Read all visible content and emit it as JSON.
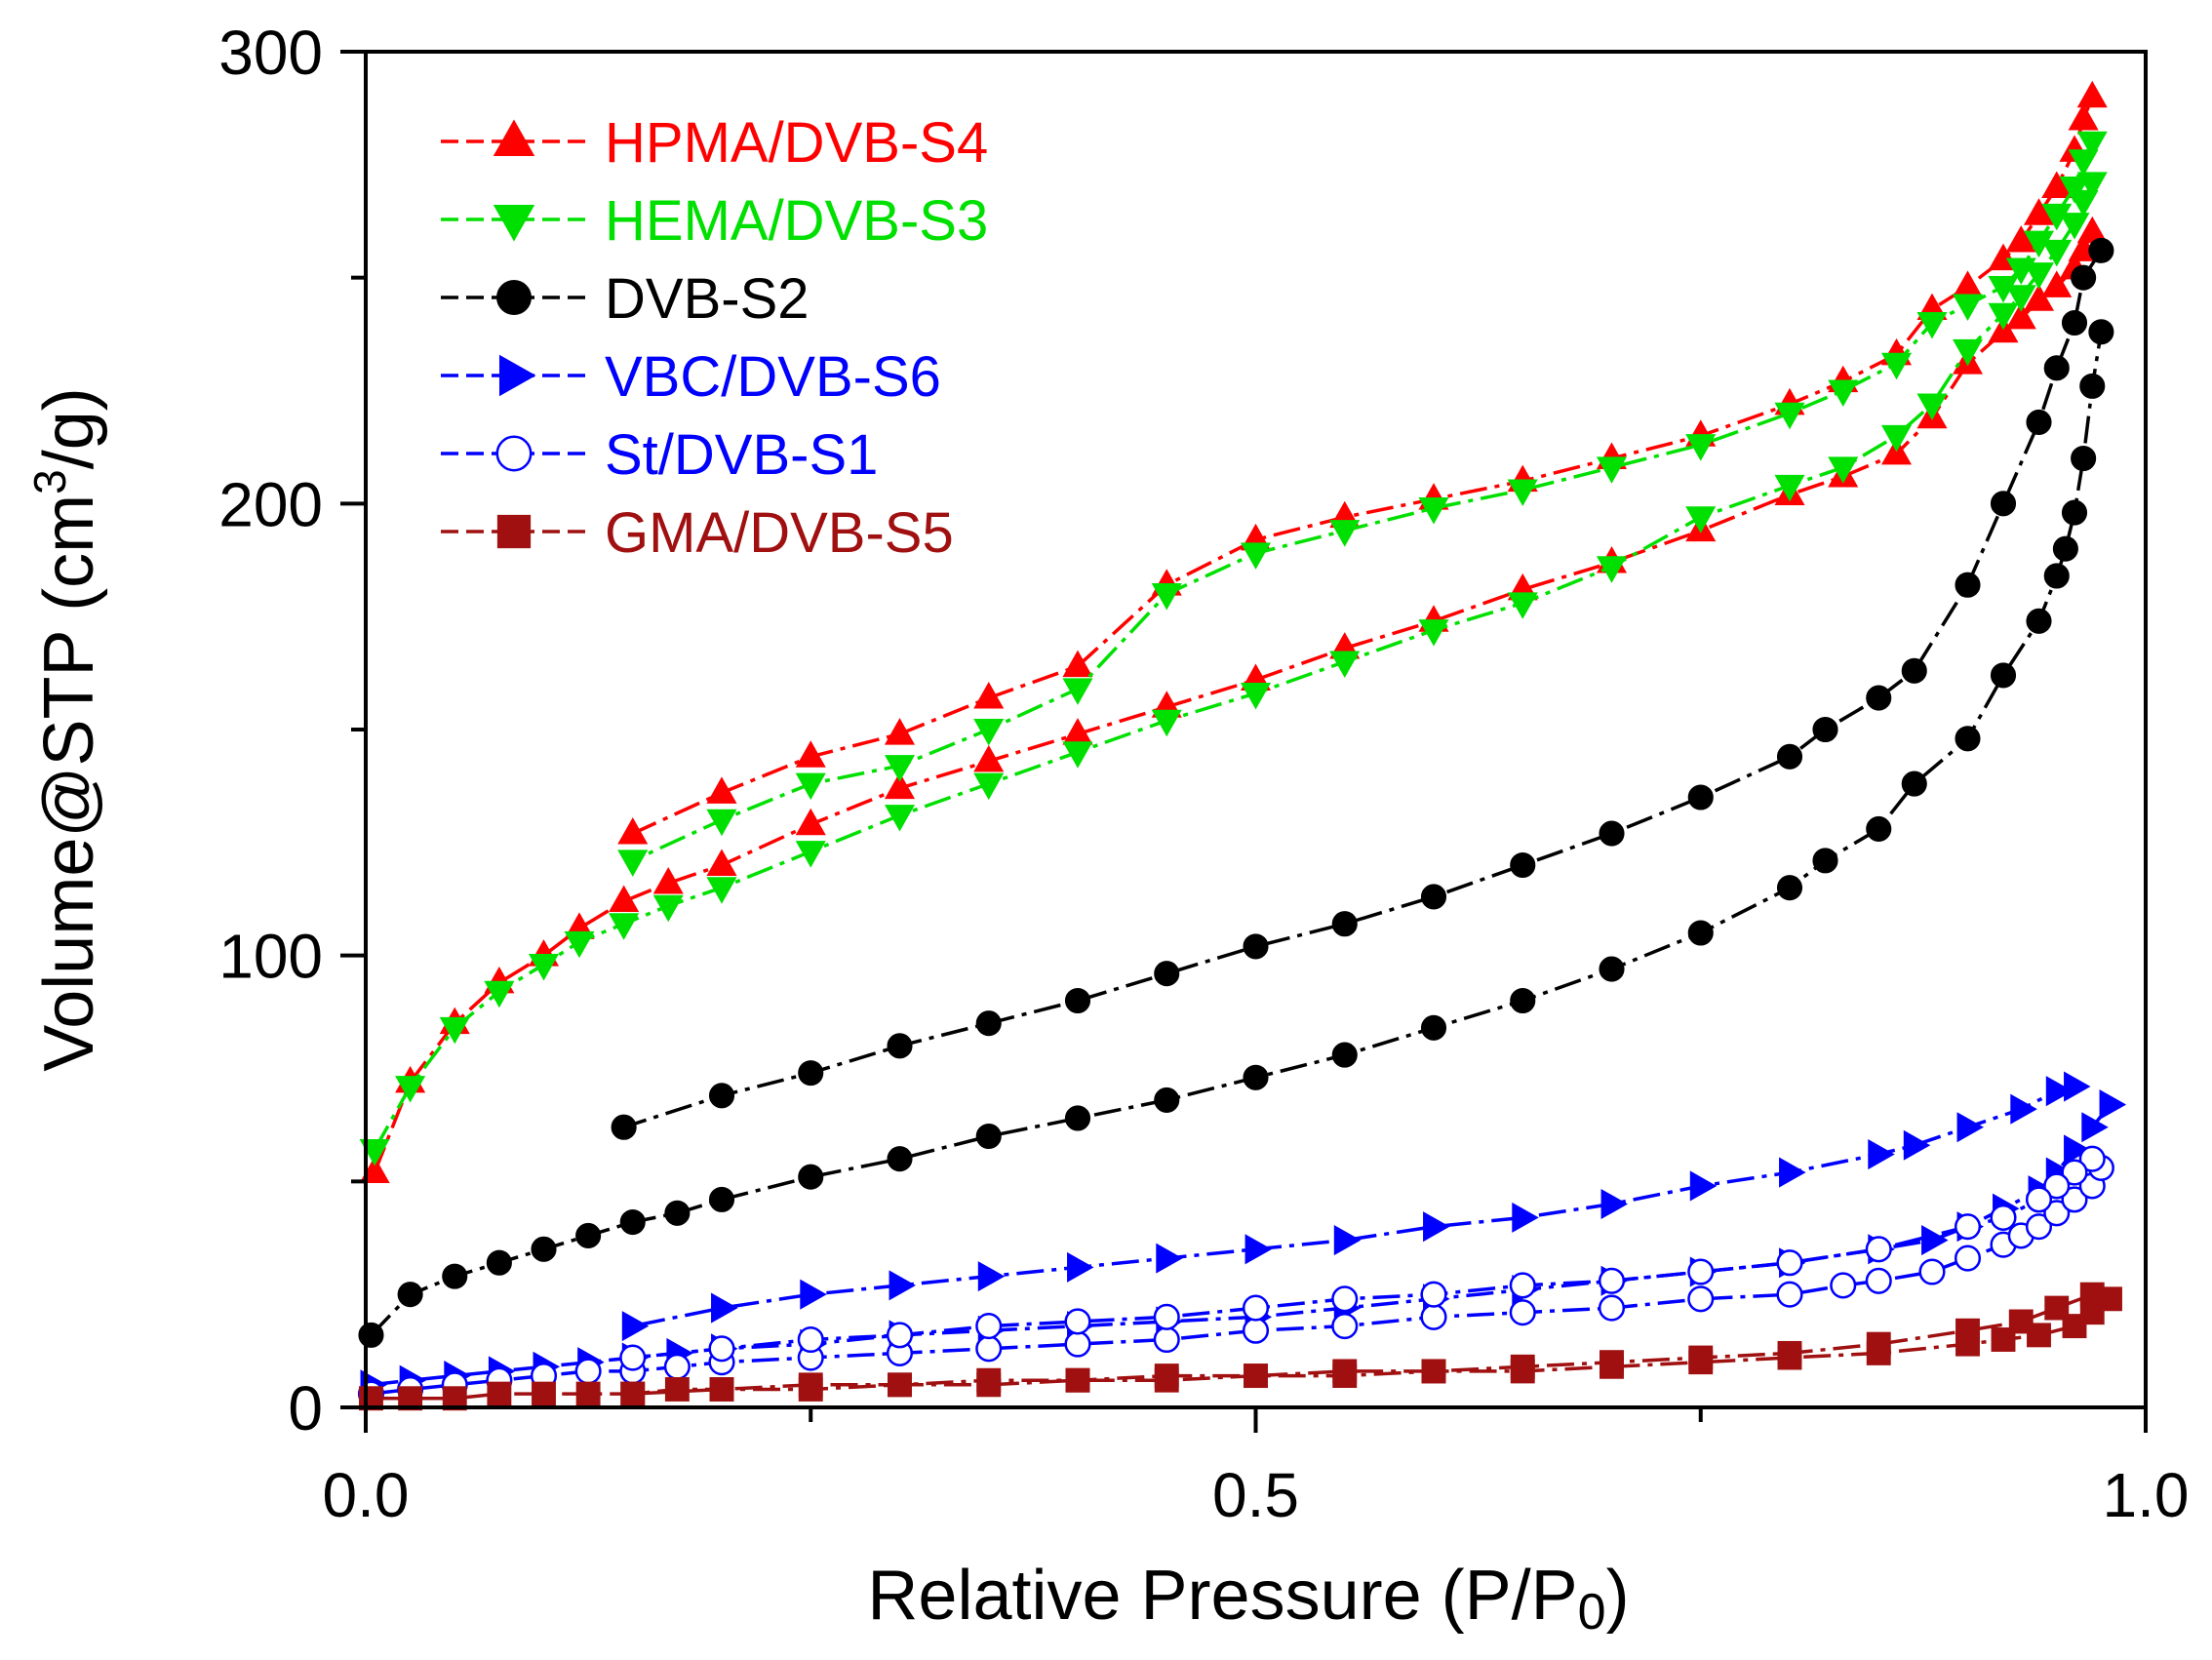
{
  "chart_data": {
    "type": "line",
    "title": "",
    "xlabel": "Relative Pressure (P/P",
    "xlabel_sub": "0",
    "xlabel_end": ")",
    "ylabel": "Volume@STP (cm",
    "ylabel_sup": "3",
    "ylabel_end": "/g)",
    "xlim": [
      0.0,
      1.0
    ],
    "ylim": [
      0,
      300
    ],
    "x_major_ticks": [
      0.0,
      0.5,
      1.0
    ],
    "x_tick_labels": [
      "0.0",
      "0.5",
      "1.0"
    ],
    "x_minor_ticks": [
      0.25,
      0.75
    ],
    "y_major_ticks": [
      0,
      100,
      200,
      300
    ],
    "y_tick_labels": [
      "0",
      "100",
      "200",
      "300"
    ],
    "y_minor_ticks": [
      50,
      150,
      250
    ],
    "grid": false,
    "legend_position": "top-left",
    "series": [
      {
        "name": "HPMA/DVB-S4",
        "legend_label": "HPMA/DVB-S4",
        "color": "#ff0000",
        "marker": "triangle-up",
        "filled": true,
        "branches": [
          {
            "x": [
              0.005,
              0.025,
              0.05,
              0.075,
              0.1,
              0.12,
              0.145,
              0.17,
              0.2,
              0.25,
              0.3,
              0.35,
              0.4,
              0.45,
              0.5,
              0.55,
              0.6,
              0.65,
              0.7,
              0.75,
              0.8,
              0.83,
              0.86,
              0.88,
              0.9,
              0.92,
              0.93,
              0.94,
              0.95,
              0.96,
              0.965,
              0.97
            ],
            "y": [
              52,
              72,
              85,
              94,
              100,
              106,
              112,
              116,
              120,
              129,
              137,
              143,
              149,
              155,
              161,
              168,
              174,
              181,
              187,
              194,
              202,
              206,
              211,
              219,
              231,
              238,
              241,
              245,
              248,
              252,
              256,
              260
            ]
          },
          {
            "x": [
              0.97,
              0.965,
              0.96,
              0.95,
              0.94,
              0.93,
              0.92,
              0.9,
              0.88,
              0.86,
              0.83,
              0.8,
              0.75,
              0.7,
              0.65,
              0.6,
              0.55,
              0.5,
              0.45,
              0.4,
              0.35,
              0.3,
              0.25,
              0.2,
              0.15
            ],
            "y": [
              290,
              285,
              278,
              270,
              264,
              258,
              254,
              248,
              243,
              233,
              227,
              222,
              215,
              210,
              205,
              201,
              197,
              192,
              182,
              164,
              157,
              149,
              144,
              136,
              127
            ]
          }
        ]
      },
      {
        "name": "HEMA/DVB-S3",
        "legend_label": "HEMA/DVB-S3",
        "color": "#00e000",
        "marker": "triangle-down",
        "filled": true,
        "branches": [
          {
            "x": [
              0.005,
              0.025,
              0.05,
              0.075,
              0.1,
              0.12,
              0.145,
              0.17,
              0.2,
              0.25,
              0.3,
              0.35,
              0.4,
              0.45,
              0.5,
              0.55,
              0.6,
              0.65,
              0.7,
              0.75,
              0.8,
              0.83,
              0.86,
              0.88,
              0.9,
              0.92,
              0.93,
              0.94,
              0.95,
              0.96,
              0.965,
              0.97
            ],
            "y": [
              57,
              71,
              84,
              92,
              98,
              103,
              107,
              111,
              115,
              123,
              131,
              138,
              145,
              152,
              158,
              165,
              172,
              178,
              186,
              197,
              204,
              208,
              215,
              222,
              234,
              242,
              246,
              251,
              256,
              262,
              267,
              271
            ]
          },
          {
            "x": [
              0.97,
              0.965,
              0.96,
              0.95,
              0.94,
              0.93,
              0.92,
              0.9,
              0.88,
              0.86,
              0.83,
              0.8,
              0.75,
              0.7,
              0.65,
              0.6,
              0.55,
              0.5,
              0.45,
              0.4,
              0.35,
              0.3,
              0.25,
              0.2,
              0.15
            ],
            "y": [
              280,
              276,
              270,
              264,
              258,
              252,
              248,
              244,
              240,
              231,
              225,
              220,
              213,
              208,
              203,
              199,
              194,
              189,
              180,
              159,
              150,
              142,
              138,
              130,
              121
            ]
          }
        ]
      },
      {
        "name": "DVB-S2",
        "legend_label": "DVB-S2",
        "color": "#000000",
        "marker": "circle",
        "filled": true,
        "branches": [
          {
            "x": [
              0.003,
              0.025,
              0.05,
              0.075,
              0.1,
              0.125,
              0.15,
              0.175,
              0.2,
              0.25,
              0.3,
              0.35,
              0.4,
              0.45,
              0.5,
              0.55,
              0.6,
              0.65,
              0.7,
              0.75,
              0.8,
              0.82,
              0.85,
              0.87,
              0.9,
              0.92,
              0.94,
              0.95,
              0.955,
              0.96,
              0.965,
              0.97,
              0.975
            ],
            "y": [
              16,
              25,
              29,
              32,
              35,
              38,
              41,
              43,
              46,
              51,
              55,
              60,
              64,
              68,
              73,
              78,
              84,
              90,
              97,
              105,
              115,
              121,
              128,
              138,
              148,
              162,
              174,
              184,
              190,
              198,
              210,
              226,
              238
            ]
          },
          {
            "x": [
              0.975,
              0.965,
              0.96,
              0.95,
              0.94,
              0.92,
              0.9,
              0.87,
              0.85,
              0.82,
              0.8,
              0.75,
              0.7,
              0.65,
              0.6,
              0.55,
              0.5,
              0.45,
              0.4,
              0.35,
              0.3,
              0.25,
              0.2,
              0.145
            ],
            "y": [
              256,
              250,
              240,
              230,
              218,
              200,
              182,
              163,
              157,
              150,
              144,
              135,
              127,
              120,
              113,
              107,
              102,
              96,
              90,
              85,
              80,
              74,
              69,
              62
            ]
          }
        ]
      },
      {
        "name": "VBC/DVB-S6",
        "legend_label": "VBC/DVB-S6",
        "color": "#0000ff",
        "marker": "triangle-right",
        "filled": true,
        "branches": [
          {
            "x": [
              0.003,
              0.025,
              0.05,
              0.075,
              0.1,
              0.125,
              0.15,
              0.175,
              0.2,
              0.25,
              0.3,
              0.35,
              0.4,
              0.45,
              0.5,
              0.55,
              0.6,
              0.65,
              0.7,
              0.75,
              0.8,
              0.85,
              0.88,
              0.9,
              0.92,
              0.94,
              0.95,
              0.96,
              0.97,
              0.98
            ],
            "y": [
              5,
              6,
              7,
              8,
              9,
              10,
              11,
              12,
              13,
              14,
              16,
              17,
              18,
              19,
              20,
              22,
              24,
              26,
              28,
              30,
              32,
              35,
              37,
              40,
              44,
              48,
              52,
              57,
              62,
              67
            ]
          },
          {
            "x": [
              0.96,
              0.95,
              0.93,
              0.9,
              0.87,
              0.85,
              0.8,
              0.75,
              0.7,
              0.65,
              0.6,
              0.55,
              0.5,
              0.45,
              0.4,
              0.35,
              0.3,
              0.25,
              0.2,
              0.15
            ],
            "y": [
              71,
              70,
              66,
              62,
              58,
              56,
              52,
              49,
              45,
              42,
              40,
              37,
              35,
              33,
              31,
              29,
              27,
              25,
              22,
              18
            ]
          }
        ]
      },
      {
        "name": "St/DVB-S1",
        "legend_label": "St/DVB-S1",
        "color": "#0000ff",
        "marker": "circle",
        "filled": false,
        "branches": [
          {
            "x": [
              0.003,
              0.025,
              0.05,
              0.075,
              0.1,
              0.125,
              0.15,
              0.175,
              0.2,
              0.25,
              0.3,
              0.35,
              0.4,
              0.45,
              0.5,
              0.55,
              0.6,
              0.65,
              0.7,
              0.75,
              0.8,
              0.83,
              0.85,
              0.88,
              0.9,
              0.92,
              0.93,
              0.94,
              0.95,
              0.96,
              0.97,
              0.975
            ],
            "y": [
              3,
              4,
              5,
              6,
              7,
              8,
              8,
              9,
              10,
              11,
              12,
              13,
              14,
              15,
              17,
              18,
              20,
              21,
              22,
              24,
              25,
              27,
              28,
              30,
              33,
              36,
              38,
              40,
              43,
              46,
              49,
              53
            ]
          },
          {
            "x": [
              0.97,
              0.96,
              0.95,
              0.94,
              0.92,
              0.9,
              0.85,
              0.8,
              0.75,
              0.7,
              0.65,
              0.6,
              0.55,
              0.5,
              0.45,
              0.4,
              0.35,
              0.3,
              0.25,
              0.2,
              0.15
            ],
            "y": [
              55,
              52,
              49,
              46,
              42,
              40,
              35,
              32,
              30,
              28,
              27,
              25,
              24,
              22,
              20,
              19,
              18,
              16,
              15,
              13,
              11
            ]
          }
        ]
      },
      {
        "name": "GMA/DVB-S5",
        "legend_label": "GMA/DVB-S5",
        "color": "#a01010",
        "marker": "square",
        "filled": true,
        "branches": [
          {
            "x": [
              0.003,
              0.025,
              0.05,
              0.075,
              0.1,
              0.125,
              0.15,
              0.175,
              0.2,
              0.25,
              0.3,
              0.35,
              0.4,
              0.45,
              0.5,
              0.55,
              0.6,
              0.65,
              0.7,
              0.75,
              0.8,
              0.85,
              0.9,
              0.92,
              0.94,
              0.96,
              0.97,
              0.98
            ],
            "y": [
              2,
              2,
              2,
              3,
              3,
              3,
              3,
              4,
              4,
              4,
              5,
              5,
              6,
              6,
              7,
              7,
              8,
              8,
              9,
              10,
              11,
              12,
              14,
              15,
              16,
              18,
              21,
              24
            ]
          },
          {
            "x": [
              0.97,
              0.95,
              0.93,
              0.9,
              0.85,
              0.8,
              0.75,
              0.7,
              0.65,
              0.6,
              0.55,
              0.5,
              0.45,
              0.4,
              0.35,
              0.3,
              0.25,
              0.2,
              0.15
            ],
            "y": [
              25,
              22,
              19,
              17,
              14,
              12,
              11,
              10,
              9,
              8,
              8,
              7,
              7,
              6,
              6,
              5,
              5,
              4,
              3
            ]
          }
        ]
      }
    ]
  }
}
